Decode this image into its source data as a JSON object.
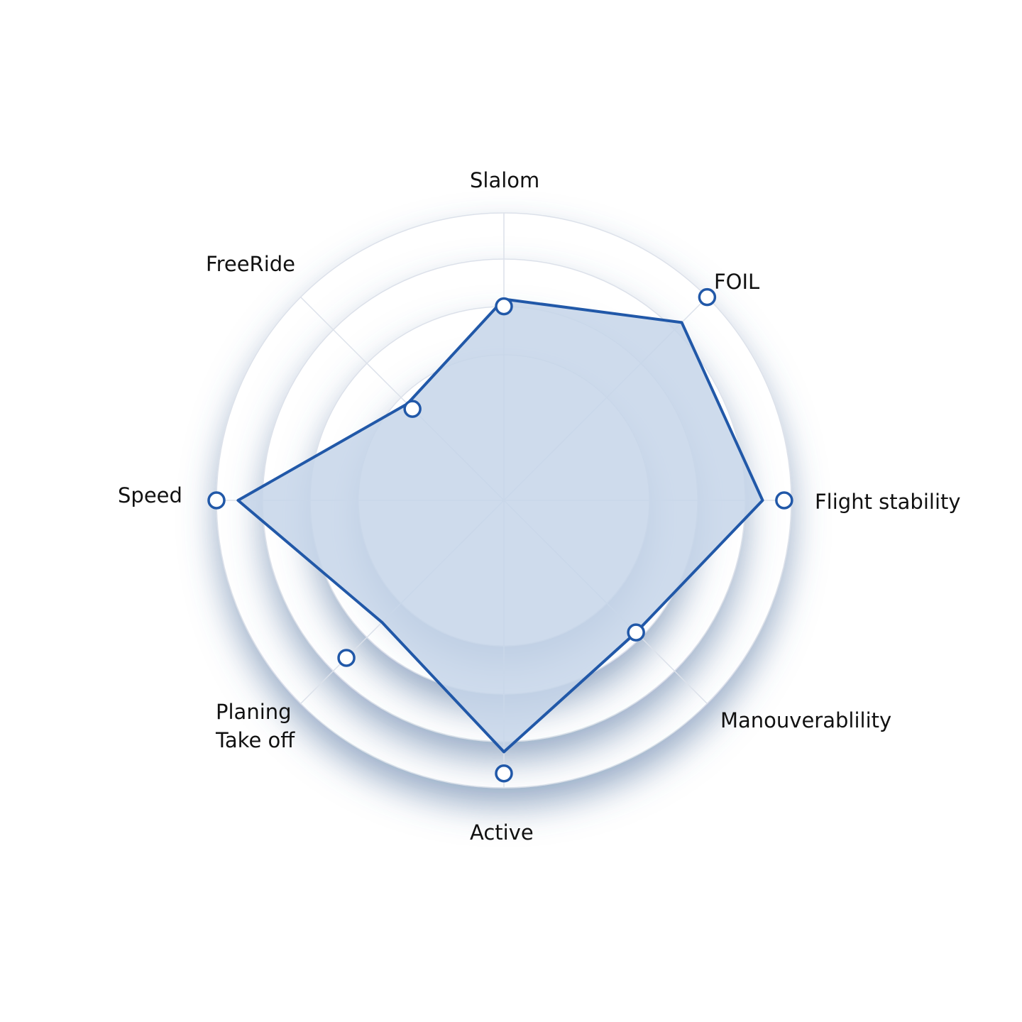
{
  "chart_data": {
    "type": "radar",
    "axes": [
      "Slalom",
      "FOIL",
      "Flight stability",
      "Manouverablility",
      "Active",
      "Planing\nTake off",
      "Speed",
      "FreeRide"
    ],
    "rings": 4,
    "series": [
      {
        "values": [
          2.8,
          3.5,
          3.6,
          2.6,
          3.5,
          2.4,
          3.7,
          1.9
        ]
      }
    ],
    "markers": [
      2.7,
      4.0,
      3.9,
      2.6,
      3.8,
      3.1,
      4.0,
      1.8
    ],
    "rmax": 4,
    "colors": {
      "line": "#2158a8",
      "fill": "#c5d5e9",
      "grid": "#dce1ea",
      "shadow": "#4d6e9c",
      "marker_fill": "#ffffff"
    }
  }
}
